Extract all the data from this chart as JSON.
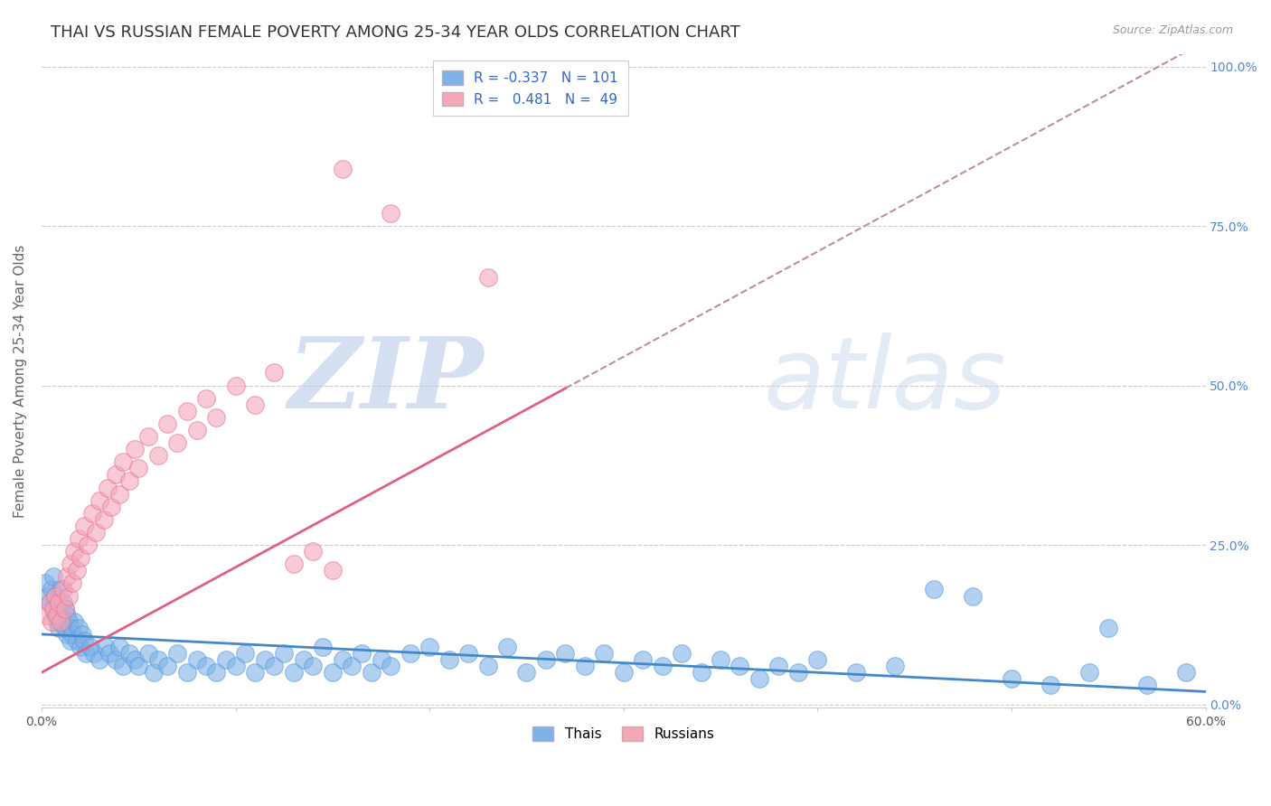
{
  "title": "THAI VS RUSSIAN FEMALE POVERTY AMONG 25-34 YEAR OLDS CORRELATION CHART",
  "source": "Source: ZipAtlas.com",
  "ylabel": "Female Poverty Among 25-34 Year Olds",
  "xlim": [
    0.0,
    0.6
  ],
  "ylim": [
    -0.005,
    1.02
  ],
  "background_color": "#ffffff",
  "grid_color": "#cccccc",
  "thai_color": "#7fb3e8",
  "thai_edge_color": "#5599dd",
  "russian_color": "#f4a7b9",
  "russian_edge_color": "#e87090",
  "thai_R": -0.337,
  "thai_N": 101,
  "russian_R": 0.481,
  "russian_N": 49,
  "legend_label_thai": "Thais",
  "legend_label_russian": "Russians",
  "watermark_zip": "ZIP",
  "watermark_atlas": "atlas",
  "title_fontsize": 13,
  "axis_label_fontsize": 11,
  "tick_fontsize": 10,
  "legend_fontsize": 11,
  "thai_points": [
    [
      0.002,
      0.19
    ],
    [
      0.003,
      0.17
    ],
    [
      0.004,
      0.16
    ],
    [
      0.005,
      0.18
    ],
    [
      0.006,
      0.15
    ],
    [
      0.006,
      0.2
    ],
    [
      0.007,
      0.14
    ],
    [
      0.007,
      0.17
    ],
    [
      0.008,
      0.16
    ],
    [
      0.008,
      0.13
    ],
    [
      0.009,
      0.15
    ],
    [
      0.009,
      0.12
    ],
    [
      0.01,
      0.18
    ],
    [
      0.01,
      0.14
    ],
    [
      0.011,
      0.13
    ],
    [
      0.011,
      0.16
    ],
    [
      0.012,
      0.12
    ],
    [
      0.012,
      0.15
    ],
    [
      0.013,
      0.11
    ],
    [
      0.013,
      0.14
    ],
    [
      0.014,
      0.13
    ],
    [
      0.015,
      0.12
    ],
    [
      0.015,
      0.1
    ],
    [
      0.016,
      0.11
    ],
    [
      0.017,
      0.13
    ],
    [
      0.018,
      0.1
    ],
    [
      0.019,
      0.12
    ],
    [
      0.02,
      0.09
    ],
    [
      0.021,
      0.11
    ],
    [
      0.022,
      0.1
    ],
    [
      0.023,
      0.08
    ],
    [
      0.025,
      0.09
    ],
    [
      0.027,
      0.08
    ],
    [
      0.03,
      0.07
    ],
    [
      0.033,
      0.09
    ],
    [
      0.035,
      0.08
    ],
    [
      0.038,
      0.07
    ],
    [
      0.04,
      0.09
    ],
    [
      0.042,
      0.06
    ],
    [
      0.045,
      0.08
    ],
    [
      0.048,
      0.07
    ],
    [
      0.05,
      0.06
    ],
    [
      0.055,
      0.08
    ],
    [
      0.058,
      0.05
    ],
    [
      0.06,
      0.07
    ],
    [
      0.065,
      0.06
    ],
    [
      0.07,
      0.08
    ],
    [
      0.075,
      0.05
    ],
    [
      0.08,
      0.07
    ],
    [
      0.085,
      0.06
    ],
    [
      0.09,
      0.05
    ],
    [
      0.095,
      0.07
    ],
    [
      0.1,
      0.06
    ],
    [
      0.105,
      0.08
    ],
    [
      0.11,
      0.05
    ],
    [
      0.115,
      0.07
    ],
    [
      0.12,
      0.06
    ],
    [
      0.125,
      0.08
    ],
    [
      0.13,
      0.05
    ],
    [
      0.135,
      0.07
    ],
    [
      0.14,
      0.06
    ],
    [
      0.145,
      0.09
    ],
    [
      0.15,
      0.05
    ],
    [
      0.155,
      0.07
    ],
    [
      0.16,
      0.06
    ],
    [
      0.165,
      0.08
    ],
    [
      0.17,
      0.05
    ],
    [
      0.175,
      0.07
    ],
    [
      0.18,
      0.06
    ],
    [
      0.19,
      0.08
    ],
    [
      0.2,
      0.09
    ],
    [
      0.21,
      0.07
    ],
    [
      0.22,
      0.08
    ],
    [
      0.23,
      0.06
    ],
    [
      0.24,
      0.09
    ],
    [
      0.25,
      0.05
    ],
    [
      0.26,
      0.07
    ],
    [
      0.27,
      0.08
    ],
    [
      0.28,
      0.06
    ],
    [
      0.29,
      0.08
    ],
    [
      0.3,
      0.05
    ],
    [
      0.31,
      0.07
    ],
    [
      0.32,
      0.06
    ],
    [
      0.33,
      0.08
    ],
    [
      0.34,
      0.05
    ],
    [
      0.35,
      0.07
    ],
    [
      0.36,
      0.06
    ],
    [
      0.37,
      0.04
    ],
    [
      0.38,
      0.06
    ],
    [
      0.39,
      0.05
    ],
    [
      0.4,
      0.07
    ],
    [
      0.42,
      0.05
    ],
    [
      0.44,
      0.06
    ],
    [
      0.46,
      0.18
    ],
    [
      0.48,
      0.17
    ],
    [
      0.5,
      0.04
    ],
    [
      0.52,
      0.03
    ],
    [
      0.54,
      0.05
    ],
    [
      0.55,
      0.12
    ],
    [
      0.57,
      0.03
    ],
    [
      0.59,
      0.05
    ]
  ],
  "russian_points": [
    [
      0.003,
      0.14
    ],
    [
      0.004,
      0.16
    ],
    [
      0.005,
      0.13
    ],
    [
      0.006,
      0.15
    ],
    [
      0.007,
      0.17
    ],
    [
      0.008,
      0.14
    ],
    [
      0.009,
      0.16
    ],
    [
      0.01,
      0.13
    ],
    [
      0.011,
      0.18
    ],
    [
      0.012,
      0.15
    ],
    [
      0.013,
      0.2
    ],
    [
      0.014,
      0.17
    ],
    [
      0.015,
      0.22
    ],
    [
      0.016,
      0.19
    ],
    [
      0.017,
      0.24
    ],
    [
      0.018,
      0.21
    ],
    [
      0.019,
      0.26
    ],
    [
      0.02,
      0.23
    ],
    [
      0.022,
      0.28
    ],
    [
      0.024,
      0.25
    ],
    [
      0.026,
      0.3
    ],
    [
      0.028,
      0.27
    ],
    [
      0.03,
      0.32
    ],
    [
      0.032,
      0.29
    ],
    [
      0.034,
      0.34
    ],
    [
      0.036,
      0.31
    ],
    [
      0.038,
      0.36
    ],
    [
      0.04,
      0.33
    ],
    [
      0.042,
      0.38
    ],
    [
      0.045,
      0.35
    ],
    [
      0.048,
      0.4
    ],
    [
      0.05,
      0.37
    ],
    [
      0.055,
      0.42
    ],
    [
      0.06,
      0.39
    ],
    [
      0.065,
      0.44
    ],
    [
      0.07,
      0.41
    ],
    [
      0.075,
      0.46
    ],
    [
      0.08,
      0.43
    ],
    [
      0.085,
      0.48
    ],
    [
      0.09,
      0.45
    ],
    [
      0.1,
      0.5
    ],
    [
      0.11,
      0.47
    ],
    [
      0.12,
      0.52
    ],
    [
      0.13,
      0.22
    ],
    [
      0.14,
      0.24
    ],
    [
      0.15,
      0.21
    ],
    [
      0.155,
      0.84
    ],
    [
      0.18,
      0.77
    ],
    [
      0.23,
      0.67
    ]
  ]
}
